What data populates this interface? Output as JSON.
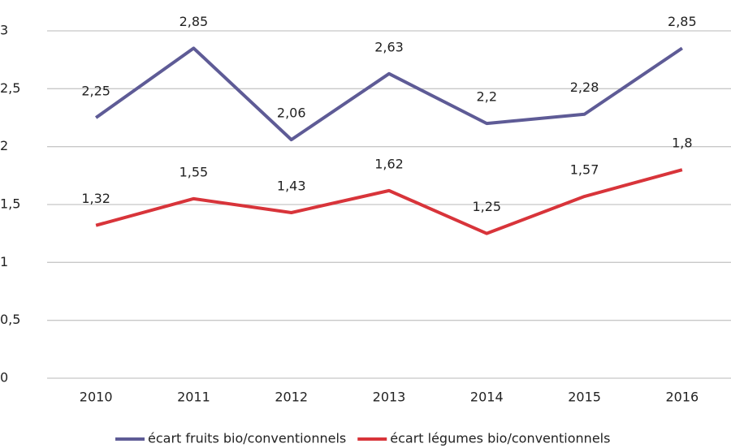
{
  "chart_data": {
    "type": "line",
    "categories": [
      "2010",
      "2011",
      "2012",
      "2013",
      "2014",
      "2015",
      "2016"
    ],
    "series": [
      {
        "name": "écart fruits bio/conventionnels",
        "color": "#5e5b96",
        "values": [
          2.25,
          2.85,
          2.06,
          2.63,
          2.2,
          2.28,
          2.85
        ],
        "value_labels": [
          "2,25",
          "2,85",
          "2,06",
          "2,63",
          "2,2",
          "2,28",
          "2,85"
        ]
      },
      {
        "name": "écart légumes bio/conventionnels",
        "color": "#d8343a",
        "values": [
          1.32,
          1.55,
          1.43,
          1.62,
          1.25,
          1.57,
          1.8
        ],
        "value_labels": [
          "1,32",
          "1,55",
          "1,43",
          "1,62",
          "1,25",
          "1,57",
          "1,8"
        ]
      }
    ],
    "ylim": [
      0,
      3
    ],
    "yticks": [
      0,
      {
        "value": 0.5,
        "label": "0,5"
      },
      1,
      {
        "value": 1.5,
        "label": "1,5"
      },
      2,
      {
        "value": 2.5,
        "label": "2,5"
      },
      3
    ],
    "grid": true,
    "legend": "bottom"
  }
}
